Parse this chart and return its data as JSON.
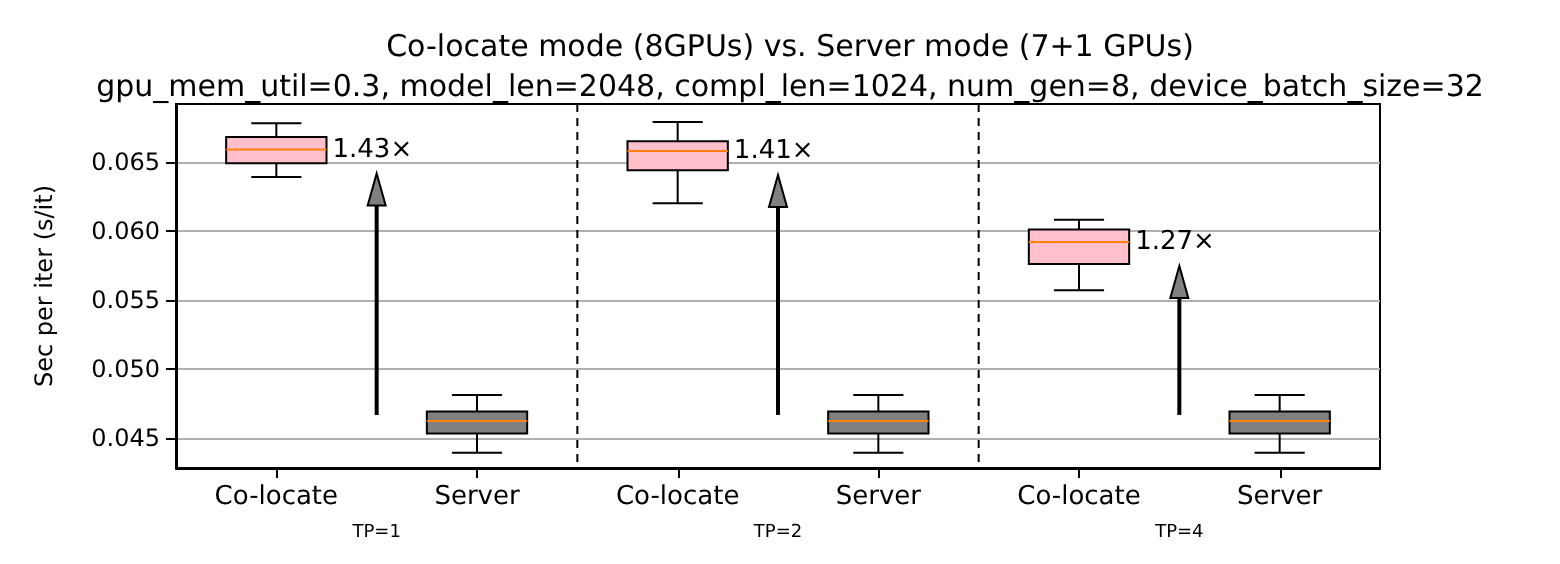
{
  "chart_data": {
    "type": "box",
    "title": "Co-locate mode (8GPUs) vs. Server mode (7+1 GPUs)",
    "subtitle": "gpu_mem_util=0.3, model_len=2048, compl_len=1024, num_gen=8, device_batch_size=32",
    "ylabel": "Sec per iter (s/it)",
    "categories": [
      "Co-locate",
      "Server",
      "Co-locate",
      "Server",
      "Co-locate",
      "Server"
    ],
    "series": [
      {
        "color": "#ffc0cb",
        "boxes": [
          {
            "low": 0.0639,
            "q1": 0.0649,
            "median": 0.0659,
            "q3": 0.0668,
            "high": 0.0678
          },
          null,
          {
            "low": 0.062,
            "q1": 0.0644,
            "median": 0.0658,
            "q3": 0.0665,
            "high": 0.0679
          },
          null,
          {
            "low": 0.0557,
            "q1": 0.0576,
            "median": 0.0592,
            "q3": 0.0601,
            "high": 0.0608
          },
          null
        ]
      },
      {
        "color": "#808080",
        "boxes": [
          null,
          {
            "low": 0.0439,
            "q1": 0.0453,
            "median": 0.0462,
            "q3": 0.0469,
            "high": 0.0481
          },
          null,
          {
            "low": 0.0439,
            "q1": 0.0453,
            "median": 0.0462,
            "q3": 0.0469,
            "high": 0.0481
          },
          null,
          {
            "low": 0.0439,
            "q1": 0.0453,
            "median": 0.0462,
            "q3": 0.0469,
            "high": 0.0481
          }
        ]
      }
    ],
    "ylim": [
      0.0428,
      0.0692
    ],
    "yticks": [
      0.045,
      {
        "value": 0.05,
        "label": "0.050"
      },
      0.055,
      {
        "value": 0.06,
        "label": "0.060"
      },
      0.065
    ],
    "grid": "y",
    "annotations": [
      "1.43×",
      "1.41×",
      "1.27×",
      "TP=1",
      "TP=2",
      "TP=4"
    ]
  }
}
